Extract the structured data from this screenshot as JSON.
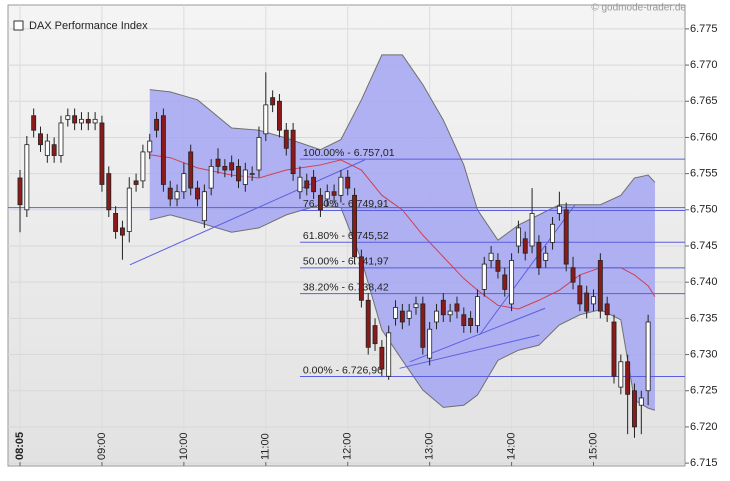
{
  "chart_data": {
    "type": "candlestick",
    "title": "DAX Performance Index",
    "source": "© godmode-trader.de",
    "open": [
      6754.4,
      6750.0,
      6763.0,
      6760.5,
      6757.5,
      6759.0,
      6757.5,
      6762.5,
      6763.0,
      6762.0,
      6762.5,
      6762.0,
      6762.0,
      6755.0,
      6749.5,
      6747.5,
      6747.0,
      6754.0,
      6754.0,
      6758.0,
      6762.5,
      6763.0,
      6753.0,
      6751.5,
      6752.5,
      6758.0,
      6753.0,
      6748.5,
      6753.0,
      6757.0,
      6756.0,
      6756.5,
      6756.0,
      6753.5,
      6755.0,
      6755.5,
      6760.5,
      6765.5,
      6765.0,
      6761.0,
      6761.0,
      6752.5,
      6754.0,
      6754.5,
      6752.0,
      6751.5,
      6752.5,
      6752.0,
      6754.5,
      6752.0,
      6743.5,
      6737.5,
      6734.0,
      6731.0,
      6727.0,
      6735.0,
      6736.0,
      6735.0,
      6736.5,
      6737.0,
      6729.5,
      6734.5,
      6737.5,
      6735.5,
      6737.0,
      6735.5,
      6735.0,
      6734.0,
      6739.0,
      6743.0,
      6743.0,
      6741.0,
      6737.0,
      6745.0,
      6746.0,
      6745.0,
      6745.5,
      6743.0,
      6745.5,
      6749.5,
      6750.0,
      6742.0,
      6739.5,
      6738.5,
      6737.0,
      6743.0,
      6737.0,
      6734.5,
      6725.5,
      6729.0,
      6725.0,
      6723.0,
      6725.0
    ],
    "high": [
      6755.5,
      6760.2,
      6764.0,
      6761.5,
      6760.5,
      6760.0,
      6763.0,
      6764.0,
      6764.0,
      6763.5,
      6763.5,
      6763.5,
      6763.0,
      6756.0,
      6750.5,
      6748.5,
      6754.5,
      6755.0,
      6759.0,
      6760.5,
      6763.5,
      6764.0,
      6754.0,
      6753.5,
      6756.5,
      6759.0,
      6754.0,
      6753.5,
      6757.0,
      6758.5,
      6757.0,
      6757.5,
      6757.0,
      6756.5,
      6756.0,
      6761.5,
      6769.0,
      6766.5,
      6766.0,
      6762.0,
      6762.0,
      6756.0,
      6755.0,
      6755.5,
      6753.0,
      6753.5,
      6753.5,
      6755.5,
      6755.5,
      6753.0,
      6744.5,
      6738.5,
      6735.0,
      6732.0,
      6734.0,
      6737.5,
      6737.0,
      6737.0,
      6738.0,
      6738.0,
      6734.5,
      6737.0,
      6738.5,
      6737.0,
      6738.0,
      6736.5,
      6736.0,
      6739.0,
      6743.5,
      6745.0,
      6744.0,
      6742.0,
      6744.0,
      6748.5,
      6747.0,
      6753.0,
      6746.5,
      6745.0,
      6749.0,
      6752.5,
      6751.0,
      6743.5,
      6741.0,
      6739.5,
      6739.0,
      6744.0,
      6738.0,
      6735.5,
      6730.0,
      6730.0,
      6726.0,
      6725.0,
      6735.5
    ],
    "low": [
      6746.9,
      6749.0,
      6760.0,
      6758.0,
      6756.5,
      6756.5,
      6756.5,
      6761.5,
      6761.0,
      6761.0,
      6761.0,
      6761.0,
      6752.5,
      6749.0,
      6746.0,
      6743.1,
      6745.5,
      6752.5,
      6753.0,
      6757.0,
      6760.0,
      6752.5,
      6750.5,
      6750.5,
      6751.5,
      6752.0,
      6750.5,
      6747.5,
      6752.0,
      6755.0,
      6754.5,
      6754.5,
      6753.0,
      6752.5,
      6754.0,
      6754.5,
      6759.5,
      6763.5,
      6760.0,
      6757.5,
      6754.0,
      6751.5,
      6752.0,
      6751.5,
      6749.0,
      6750.5,
      6751.0,
      6751.0,
      6752.0,
      6742.5,
      6736.5,
      6730.0,
      6730.5,
      6727.0,
      6726.5,
      6734.0,
      6733.5,
      6734.0,
      6735.5,
      6730.0,
      6728.5,
      6733.5,
      6734.5,
      6734.5,
      6735.0,
      6733.0,
      6733.0,
      6733.0,
      6738.0,
      6742.0,
      6740.5,
      6738.0,
      6736.0,
      6744.0,
      6743.0,
      6744.0,
      6741.0,
      6742.0,
      6744.5,
      6748.5,
      6741.5,
      6739.0,
      6736.0,
      6735.0,
      6736.0,
      6735.0,
      6734.5,
      6726.0,
      6724.5,
      6719.0,
      6718.5,
      6719.0,
      6723.0
    ],
    "close": [
      6750.7,
      6759.0,
      6761.0,
      6759.0,
      6759.5,
      6757.5,
      6762.0,
      6763.0,
      6762.0,
      6762.5,
      6762.0,
      6762.5,
      6753.5,
      6750.0,
      6747.0,
      6746.5,
      6753.0,
      6753.5,
      6758.0,
      6759.5,
      6761.0,
      6753.5,
      6751.5,
      6752.5,
      6755.0,
      6753.0,
      6751.5,
      6752.5,
      6756.0,
      6756.0,
      6755.5,
      6755.5,
      6754.0,
      6755.5,
      6755.0,
      6760.0,
      6764.5,
      6764.5,
      6761.0,
      6758.5,
      6755.0,
      6754.5,
      6753.0,
      6752.5,
      6750.0,
      6752.5,
      6752.0,
      6754.5,
      6753.0,
      6743.5,
      6737.5,
      6731.0,
      6731.5,
      6728.0,
      6733.0,
      6736.5,
      6734.5,
      6736.0,
      6737.0,
      6731.0,
      6733.5,
      6736.0,
      6735.5,
      6736.0,
      6736.0,
      6734.0,
      6734.0,
      6738.0,
      6742.5,
      6744.0,
      6741.5,
      6739.0,
      6743.0,
      6747.5,
      6744.0,
      6749.5,
      6742.0,
      6744.0,
      6748.0,
      6750.5,
      6742.5,
      6740.0,
      6737.0,
      6736.0,
      6738.0,
      6736.0,
      6735.5,
      6727.0,
      6729.0,
      6724.5,
      6720.0,
      6724.0,
      6734.5
    ],
    "up_color": "#ffffff",
    "down_color": "#8b1a1a",
    "band": {
      "x": [
        19,
        22,
        26,
        31,
        35,
        39,
        44,
        47,
        50,
        53,
        56,
        59,
        62,
        65,
        67,
        70,
        73,
        76,
        79,
        82,
        85,
        88,
        90,
        92,
        93
      ],
      "upper": [
        6766.6,
        6766.3,
        6765.2,
        6761.3,
        6761.0,
        6759.9,
        6758.3,
        6759.7,
        6765.2,
        6771.4,
        6771.4,
        6767.3,
        6762.4,
        6756.2,
        6750.0,
        6745.8,
        6747.9,
        6749.3,
        6750.7,
        6750.7,
        6750.7,
        6752.0,
        6754.4,
        6754.8,
        6753.8
      ],
      "lower": [
        6748.6,
        6749.3,
        6748.3,
        6746.9,
        6747.5,
        6749.3,
        6750.7,
        6750.3,
        6743.1,
        6733.4,
        6729.2,
        6725.1,
        6722.7,
        6723.0,
        6724.4,
        6729.2,
        6730.6,
        6731.3,
        6734.1,
        6735.5,
        6736.2,
        6734.8,
        6723.7,
        6722.6,
        6722.3
      ],
      "middle": [
        6757.6,
        6757.2,
        6755.8,
        6754.8,
        6754.4,
        6755.5,
        6756.2,
        6756.9,
        6755.5,
        6752.0,
        6750.0,
        6746.5,
        6743.5,
        6740.5,
        6738.9,
        6736.8,
        6736.3,
        6737.5,
        6738.9,
        6741.0,
        6742.0,
        6742.0,
        6741.0,
        6739.5,
        6738.0
      ],
      "fill": "#a4a6f2",
      "middle_color": "#d04050"
    },
    "fib_start": 41,
    "fib_levels": [
      {
        "value": 6757.01,
        "label": "100.00% - 6.757,01"
      },
      {
        "value": 6749.91,
        "label": "76.40% - 6.749,91"
      },
      {
        "value": 6745.52,
        "label": "61.80% - 6.745,52"
      },
      {
        "value": 6741.97,
        "label": "50.00% - 6.741,97"
      },
      {
        "value": 6738.42,
        "label": "38.20% - 6.738,42"
      },
      {
        "value": 6726.96,
        "label": "0.00% - 6.726,96"
      }
    ],
    "reference_line": 6750.3,
    "trend_lines": [
      {
        "x": [
          16.1,
          50.5
        ],
        "y": [
          6742.4,
          6756.9
        ]
      },
      {
        "x": [
          55.6,
          76.1
        ],
        "y": [
          6728.1,
          6732.7
        ]
      },
      {
        "x": [
          57.1,
          76.9
        ],
        "y": [
          6729.0,
          6736.4
        ]
      },
      {
        "x": [
          67.3,
          81.3
        ],
        "y": [
          6732.7,
          6750.7
        ]
      }
    ],
    "line_color": "#5a5ee0",
    "xlim": [
      -1.76,
      97.4
    ],
    "xticks": [
      {
        "value": 0,
        "label": "08:05"
      },
      {
        "value": 12,
        "label": "09:00"
      },
      {
        "value": 24,
        "label": "10:00"
      },
      {
        "value": 36,
        "label": "11:00"
      },
      {
        "value": 48,
        "label": "12:00"
      },
      {
        "value": 60,
        "label": "13:00"
      },
      {
        "value": 72,
        "label": "14:00"
      },
      {
        "value": 84,
        "label": "15:00"
      }
    ],
    "ylim": [
      6714.6,
      6778.3
    ],
    "yticks": [
      {
        "value": 6715,
        "label": "6.715"
      },
      {
        "value": 6720,
        "label": "6.720"
      },
      {
        "value": 6725,
        "label": "6.725"
      },
      {
        "value": 6730,
        "label": "6.730"
      },
      {
        "value": 6735,
        "label": "6.735"
      },
      {
        "value": 6740,
        "label": "6.740"
      },
      {
        "value": 6745,
        "label": "6.745"
      },
      {
        "value": 6750,
        "label": "6.750"
      },
      {
        "value": 6755,
        "label": "6.755"
      },
      {
        "value": 6760,
        "label": "6.760"
      },
      {
        "value": 6765,
        "label": "6.765"
      },
      {
        "value": 6770,
        "label": "6.770"
      },
      {
        "value": 6775,
        "label": "6.775"
      }
    ],
    "grid": true
  }
}
